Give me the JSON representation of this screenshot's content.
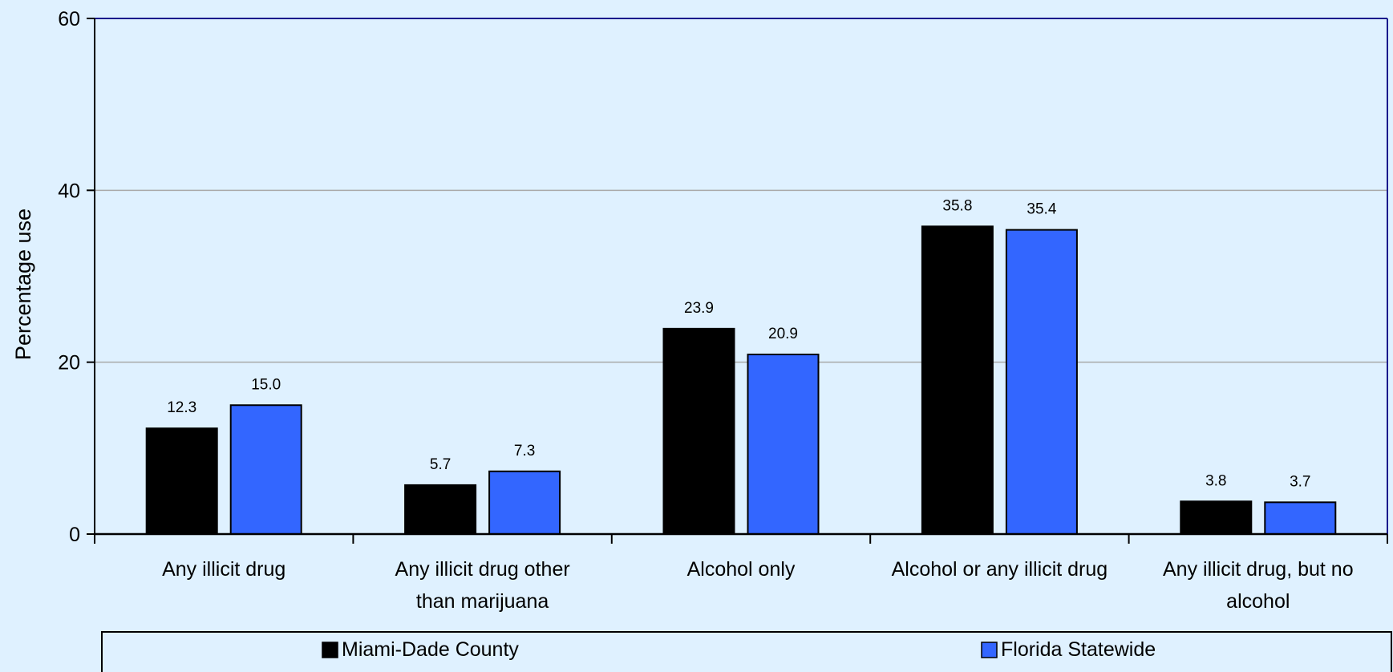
{
  "chart_data": {
    "type": "bar",
    "title": "",
    "xlabel": "",
    "ylabel": "Percentage use",
    "ylim": [
      0,
      60
    ],
    "yticks": [
      0,
      20,
      40,
      60
    ],
    "grid": true,
    "legend_position": "bottom",
    "categories": [
      [
        "Any illicit drug"
      ],
      [
        "Any illicit drug other",
        "than marijuana"
      ],
      [
        "Alcohol only"
      ],
      [
        "Alcohol or any illicit drug"
      ],
      [
        "Any illicit drug, but no",
        "alcohol"
      ]
    ],
    "series": [
      {
        "name": "Miami-Dade County",
        "color": "#000000",
        "values": [
          12.3,
          5.7,
          23.9,
          35.8,
          3.8
        ],
        "labels": [
          "12.3",
          "5.7",
          "23.9",
          "35.8",
          "3.8"
        ]
      },
      {
        "name": "Florida Statewide",
        "color": "#3366ff",
        "values": [
          15.0,
          7.3,
          20.9,
          35.4,
          3.7
        ],
        "labels": [
          "15.0",
          "7.3",
          "20.9",
          "35.4",
          "3.7"
        ]
      }
    ]
  },
  "colors": {
    "background": "#dff1ff",
    "gridline": "#a9a9a9",
    "axis": "#000000"
  }
}
